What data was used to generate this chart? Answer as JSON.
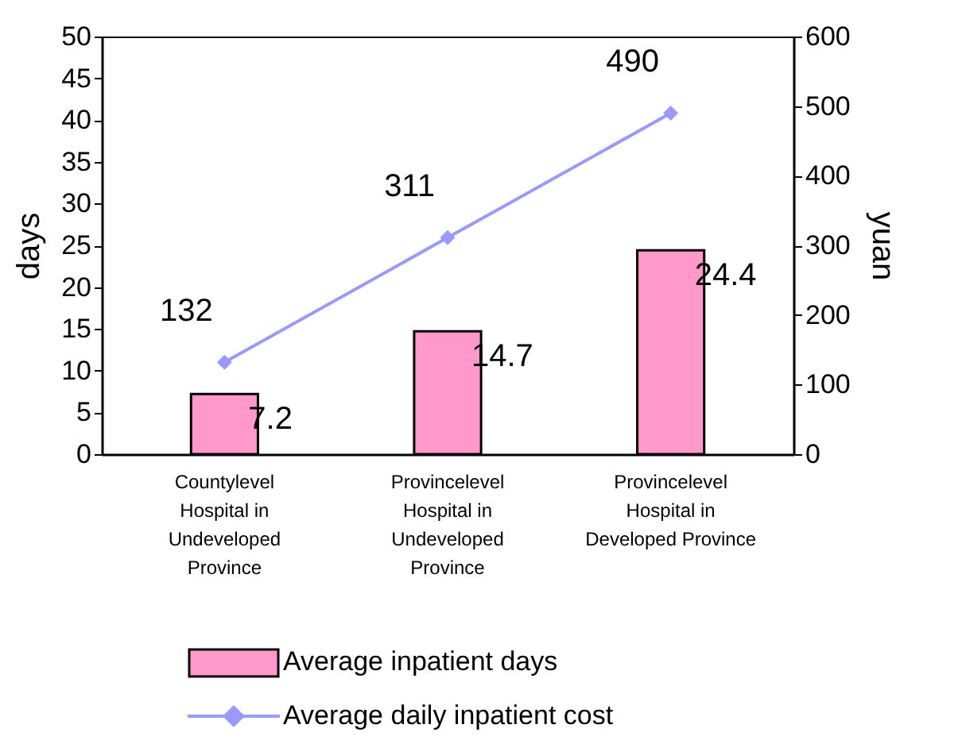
{
  "chart_data": {
    "type": "bar",
    "categories": [
      "Countylevel\nHospital in\nUndeveloped\nProvince",
      "Provincelevel\nHospital in\nUndeveloped\nProvince",
      "Provincelevel\nHospital in\nDeveloped Province"
    ],
    "ylabel": "days",
    "y2label": "yuan",
    "ylim": [
      0,
      50
    ],
    "yticks": [
      0,
      5,
      10,
      15,
      20,
      25,
      30,
      35,
      40,
      45,
      50
    ],
    "y2lim": [
      0,
      600
    ],
    "y2ticks": [
      0,
      100,
      200,
      300,
      400,
      500,
      600
    ],
    "series": [
      {
        "name": "Average inpatient days",
        "color": "#ff99cc",
        "values": [
          7.2,
          14.7,
          24.4
        ]
      },
      {
        "name": "Average daily inpatient cost",
        "type": "line",
        "axis": "y2",
        "color": "#9999ff",
        "values": [
          132,
          311,
          490
        ]
      }
    ],
    "data_labels": true,
    "legend": "bottom",
    "marker": "diamond",
    "grid": false
  }
}
